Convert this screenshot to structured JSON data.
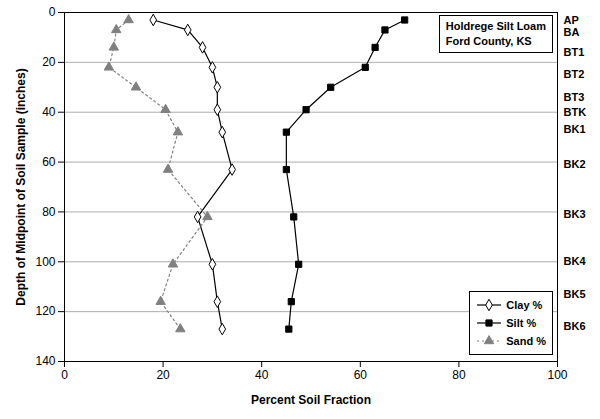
{
  "chart_data": {
    "type": "line",
    "title": [
      "Holdrege Silt Loam",
      "Ford County, KS"
    ],
    "x_label": "Percent Soil Fraction",
    "y_label": "Depth of Midpoint of Soil Sample (inches)",
    "y": [
      3,
      7,
      14,
      22,
      30,
      39,
      48,
      63,
      82,
      101,
      116,
      127
    ],
    "series": [
      {
        "name": "Clay %",
        "color": "#000000",
        "marker": "open-diamond",
        "line_style": "solid",
        "values": [
          18,
          25,
          28,
          30,
          31,
          31,
          32,
          34,
          27,
          30,
          31,
          32
        ]
      },
      {
        "name": "Silt %",
        "color": "#000000",
        "marker": "square",
        "line_style": "solid",
        "values": [
          69,
          65,
          63,
          61,
          54,
          49,
          45,
          45,
          46.5,
          47.5,
          46,
          45.5
        ]
      },
      {
        "name": "Sand %",
        "color": "#808080",
        "marker": "triangle",
        "line_style": "dotted",
        "values": [
          13,
          10.5,
          10,
          9,
          14.5,
          20.5,
          23,
          21,
          29,
          22,
          19.5,
          23.5
        ]
      }
    ],
    "horizon_labels": {
      "labels": [
        "AP",
        "BA",
        "BT1",
        "BT2",
        "BT3",
        "BTK",
        "BK1",
        "BK2",
        "BK3",
        "BK4",
        "BK5",
        "BK6"
      ],
      "depths": [
        3,
        8,
        16,
        25,
        34,
        40,
        47,
        61,
        81,
        100,
        113,
        126
      ]
    },
    "xlim": [
      0,
      100
    ],
    "xticks": [
      0,
      20,
      40,
      60,
      80,
      100
    ],
    "ylim": [
      0,
      140
    ],
    "yticks": [
      0,
      20,
      40,
      60,
      80,
      100,
      120,
      140
    ],
    "grid": true,
    "legend": "lower right"
  }
}
